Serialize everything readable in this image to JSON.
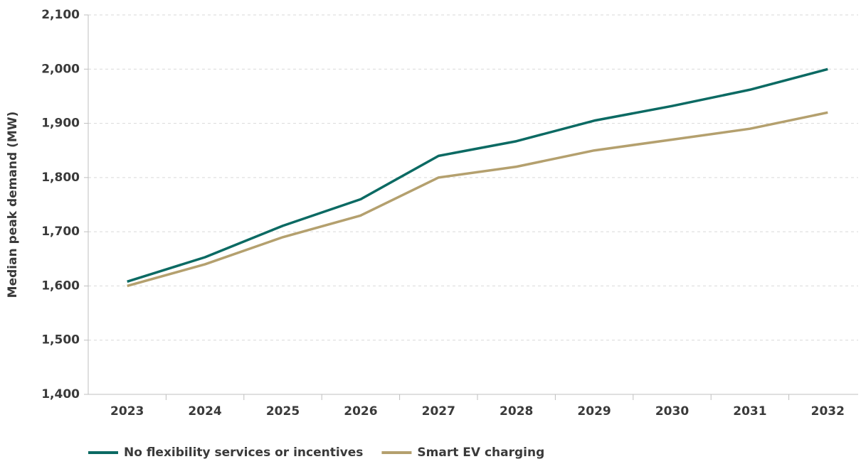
{
  "chart_data": {
    "type": "line",
    "y_label": "Median peak demand (MW)",
    "categories": [
      "2023",
      "2024",
      "2025",
      "2026",
      "2027",
      "2028",
      "2029",
      "2030",
      "2031",
      "2032"
    ],
    "series": [
      {
        "name": "No flexibility services or incentives",
        "color": "#0b6a63",
        "values": [
          1608,
          1653,
          1711,
          1760,
          1840,
          1867,
          1905,
          1932,
          1962,
          2000
        ]
      },
      {
        "name": "Smart EV charging",
        "color": "#b4a06e",
        "values": [
          1600,
          1640,
          1690,
          1730,
          1800,
          1820,
          1850,
          1870,
          1890,
          1920
        ]
      }
    ],
    "ylim": [
      1400,
      2100
    ],
    "yticks": [
      {
        "value": 1400,
        "label": "1,400"
      },
      {
        "value": 1500,
        "label": "1,500"
      },
      {
        "value": 1600,
        "label": "1,600"
      },
      {
        "value": 1700,
        "label": "1,700"
      },
      {
        "value": 1800,
        "label": "1,800"
      },
      {
        "value": 1900,
        "label": "1,900"
      },
      {
        "value": 2000,
        "label": "2,000"
      },
      {
        "value": 2100,
        "label": "2,100"
      }
    ],
    "grid": true,
    "legend": "bottom"
  }
}
